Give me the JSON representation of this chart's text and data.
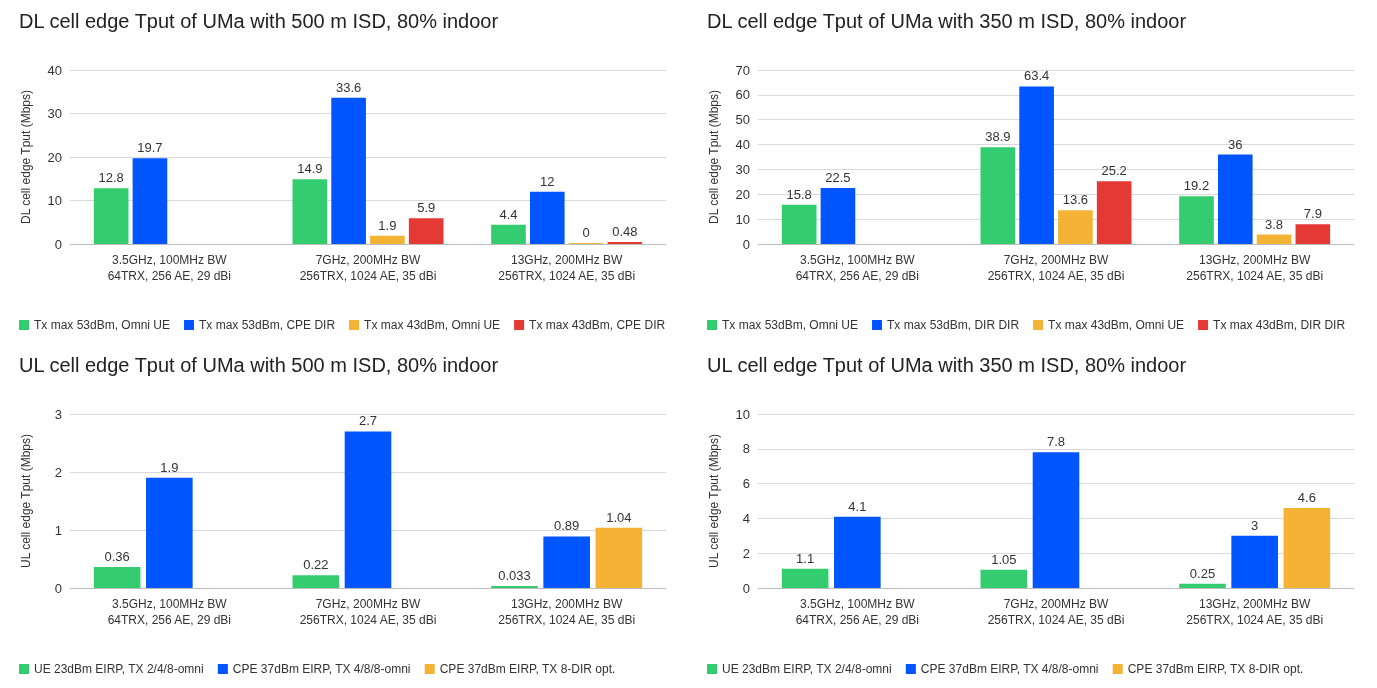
{
  "chart_data": [
    {
      "type": "bar",
      "title": "DL cell edge Tput of UMa with 500 m ISD, 80% indoor",
      "ylabel": "DL cell edge Tput (Mbps)",
      "categories": [
        "3.5GHz, 100MHz BW\n64TRX, 256 AE, 29 dBi",
        "7GHz, 200MHz BW\n256TRX, 1024 AE, 35 dBi",
        "13GHz, 200MHz BW\n256TRX, 1024 AE, 35 dBi"
      ],
      "series": [
        {
          "name": "Tx max 53dBm, Omni UE",
          "color": "#33cc6f",
          "values": [
            12.8,
            14.9,
            4.4
          ]
        },
        {
          "name": "Tx max 53dBm, CPE DIR",
          "color": "#0055ff",
          "values": [
            19.7,
            33.6,
            12
          ]
        },
        {
          "name": "Tx max 43dBm, Omni UE",
          "color": "#f5b335",
          "values": [
            null,
            1.9,
            0
          ]
        },
        {
          "name": "Tx max 43dBm, CPE DIR",
          "color": "#e53935",
          "values": [
            null,
            5.9,
            0.48
          ]
        }
      ],
      "ylim": [
        0,
        40
      ],
      "yticks": [
        0,
        10,
        20,
        30,
        40
      ],
      "grid": "y",
      "legend": "bottom",
      "data_labels": true
    },
    {
      "type": "bar",
      "title": "DL cell edge Tput of UMa with 350 m ISD, 80% indoor",
      "ylabel": "DL cell edge Tput (Mbps)",
      "categories": [
        "3.5GHz, 100MHz BW\n64TRX, 256 AE, 29 dBi",
        "7GHz, 200MHz BW\n256TRX, 1024 AE, 35 dBi",
        "13GHz, 200MHz BW\n256TRX, 1024 AE, 35 dBi"
      ],
      "series": [
        {
          "name": "Tx max 53dBm, Omni UE",
          "color": "#33cc6f",
          "values": [
            15.8,
            38.9,
            19.2
          ]
        },
        {
          "name": "Tx max 53dBm, DIR DIR",
          "color": "#0055ff",
          "values": [
            22.5,
            63.4,
            36
          ]
        },
        {
          "name": "Tx max 43dBm, Omni UE",
          "color": "#f5b335",
          "values": [
            null,
            13.6,
            3.8
          ]
        },
        {
          "name": "Tx max 43dBm, DIR DIR",
          "color": "#e53935",
          "values": [
            null,
            25.2,
            7.9
          ]
        }
      ],
      "ylim": [
        0,
        70
      ],
      "yticks": [
        0,
        10,
        20,
        30,
        40,
        50,
        60,
        70
      ],
      "grid": "y",
      "legend": "bottom",
      "data_labels": true
    },
    {
      "type": "bar",
      "title": "UL cell edge Tput of UMa with 500 m ISD, 80% indoor",
      "ylabel": "UL cell edge Tput (Mbps)",
      "categories": [
        "3.5GHz, 100MHz BW\n64TRX, 256 AE, 29 dBi",
        "7GHz, 200MHz BW\n256TRX, 1024 AE, 35 dBi",
        "13GHz, 200MHz BW\n256TRX, 1024 AE, 35 dBi"
      ],
      "series": [
        {
          "name": "UE 23dBm EIRP, TX 2/4/8-omni",
          "color": "#33cc6f",
          "values": [
            0.36,
            0.22,
            0.033
          ]
        },
        {
          "name": "CPE 37dBm EIRP, TX 4/8/8-omni",
          "color": "#0055ff",
          "values": [
            1.9,
            2.7,
            0.89
          ]
        },
        {
          "name": "CPE 37dBm EIRP, TX 8-DIR opt.",
          "color": "#f5b335",
          "values": [
            null,
            null,
            1.04
          ]
        }
      ],
      "ylim": [
        0,
        3
      ],
      "yticks": [
        0,
        1,
        2,
        3
      ],
      "grid": "y",
      "legend": "bottom",
      "data_labels": true
    },
    {
      "type": "bar",
      "title": "UL cell edge Tput of UMa with 350 m ISD, 80% indoor",
      "ylabel": "UL cell edge Tput (Mbps)",
      "categories": [
        "3.5GHz, 100MHz BW\n64TRX, 256 AE, 29 dBi",
        "7GHz, 200MHz BW\n256TRX, 1024 AE, 35 dBi",
        "13GHz, 200MHz BW\n256TRX, 1024 AE, 35 dBi"
      ],
      "series": [
        {
          "name": "UE 23dBm EIRP, TX 2/4/8-omni",
          "color": "#33cc6f",
          "values": [
            1.1,
            1.05,
            0.25
          ]
        },
        {
          "name": "CPE 37dBm EIRP, TX 4/8/8-omni",
          "color": "#0055ff",
          "values": [
            4.1,
            7.8,
            3
          ]
        },
        {
          "name": "CPE 37dBm EIRP, TX 8-DIR opt.",
          "color": "#f5b335",
          "values": [
            null,
            null,
            4.6
          ]
        }
      ],
      "ylim": [
        0,
        10
      ],
      "yticks": [
        0,
        2,
        4,
        6,
        8,
        10
      ],
      "grid": "y",
      "legend": "bottom",
      "data_labels": true
    }
  ]
}
